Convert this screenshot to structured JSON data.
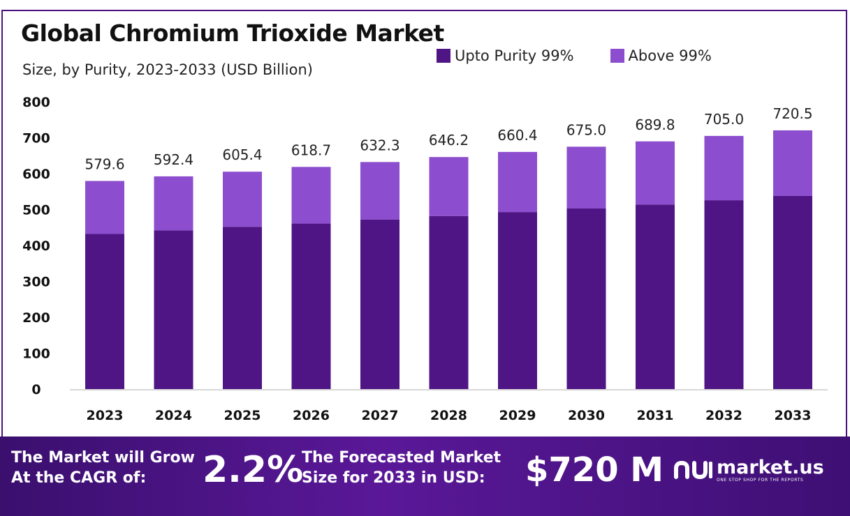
{
  "chart_data": {
    "type": "bar",
    "stacked": true,
    "title": "Global Chromium Trioxide Market",
    "subtitle": "Size, by Purity, 2023-2033 (USD Billion)",
    "categories": [
      "2023",
      "2024",
      "2025",
      "2026",
      "2027",
      "2028",
      "2029",
      "2030",
      "2031",
      "2032",
      "2033"
    ],
    "series": [
      {
        "name": "Upto Purity 99%",
        "color": "#4f1584",
        "values": [
          432,
          442,
          452,
          461,
          472,
          482,
          493,
          503,
          514,
          526,
          538
        ]
      },
      {
        "name": "Above 99%",
        "color": "#8c4dce",
        "values": [
          147.6,
          150.4,
          153.4,
          157.7,
          160.3,
          164.2,
          167.4,
          172.0,
          175.8,
          179.0,
          182.5
        ]
      }
    ],
    "totals": [
      "579.6",
      "592.4",
      "605.4",
      "618.7",
      "632.3",
      "646.2",
      "660.4",
      "675.0",
      "689.8",
      "705.0",
      "720.5"
    ],
    "ylim": [
      0,
      800
    ],
    "yticks": [
      "0",
      "100",
      "200",
      "300",
      "400",
      "500",
      "600",
      "700",
      "800"
    ],
    "legend_position": "top-right",
    "grid": false
  },
  "footer": {
    "cagr_line1": "The Market will Grow",
    "cagr_line2": "At the CAGR of:",
    "cagr_value": "2.2%",
    "forecast_line1": "The Forecasted Market",
    "forecast_line2": "Size for 2033 in USD:",
    "forecast_value": "$720 M",
    "brand_name": "market.us",
    "brand_tagline": "ONE STOP SHOP FOR THE REPORTS"
  }
}
